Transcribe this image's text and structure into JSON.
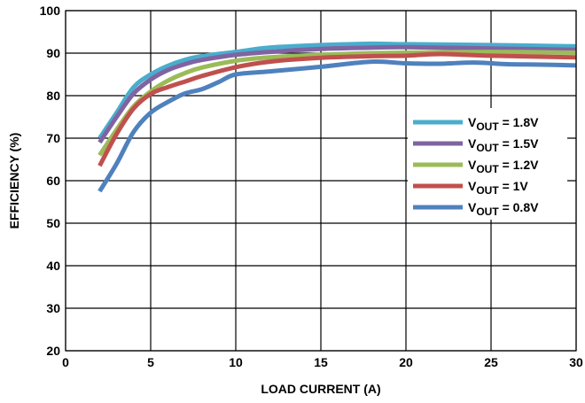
{
  "chart_data": {
    "type": "line",
    "xlabel": "LOAD CURRENT (A)",
    "ylabel": "EFFICIENCY (%)",
    "xlim": [
      0,
      30
    ],
    "ylim": [
      20,
      100
    ],
    "xticks": [
      "0",
      "5",
      "10",
      "15",
      "20",
      "25",
      "30"
    ],
    "yticks": [
      "20",
      "30",
      "40",
      "50",
      "60",
      "70",
      "80",
      "90",
      "100"
    ],
    "grid": true,
    "legend_position": "right",
    "series": [
      {
        "name": "V",
        "name_sub": "OUT",
        "name_suffix": " = 1.8V",
        "color": "#4aadcc",
        "x": [
          2,
          3,
          4,
          5,
          6,
          7,
          8,
          10,
          12,
          15,
          18,
          20,
          25,
          30
        ],
        "y": [
          70,
          76,
          82,
          85,
          87,
          88.4,
          89.3,
          90.3,
          91.3,
          91.9,
          92.2,
          92.1,
          91.9,
          91.6
        ]
      },
      {
        "name": "V",
        "name_sub": "OUT",
        "name_suffix": " = 1.5V",
        "color": "#8064a2",
        "x": [
          2,
          3,
          4,
          5,
          6,
          7,
          8,
          10,
          12,
          15,
          18,
          20,
          25,
          30
        ],
        "y": [
          69,
          75,
          80.5,
          83.8,
          86,
          87.4,
          88.4,
          89.6,
          90.3,
          91,
          91.3,
          91.4,
          91.1,
          90.8
        ]
      },
      {
        "name": "V",
        "name_sub": "OUT",
        "name_suffix": " = 1.2V",
        "color": "#9bbb59",
        "x": [
          2,
          3,
          4,
          5,
          6,
          7,
          8,
          10,
          12,
          15,
          18,
          20,
          25,
          30
        ],
        "y": [
          66,
          72,
          77.5,
          81,
          83.5,
          85.3,
          86.6,
          88.2,
          89,
          89.6,
          90,
          90.1,
          90.3,
          90.1
        ]
      },
      {
        "name": "V",
        "name_sub": "OUT",
        "name_suffix": " = 1V",
        "color": "#c0504d",
        "x": [
          2,
          3,
          4,
          5,
          6,
          7,
          8,
          10,
          12,
          15,
          18,
          20,
          22,
          25,
          30
        ],
        "y": [
          63.5,
          71,
          77,
          80.4,
          82,
          83.3,
          84.6,
          86.7,
          88,
          88.9,
          89.3,
          89.4,
          89.8,
          89.4,
          89
        ]
      },
      {
        "name": "V",
        "name_sub": "OUT",
        "name_suffix": " = 0.8V",
        "color": "#4f81bd",
        "x": [
          2,
          3,
          4,
          5,
          6,
          7,
          8,
          9,
          10,
          12,
          15,
          18,
          20,
          22,
          24,
          26,
          28,
          30
        ],
        "y": [
          57.5,
          64,
          71.5,
          76,
          78.5,
          80.5,
          81.5,
          83.2,
          85,
          85.7,
          86.8,
          88,
          87.6,
          87.5,
          87.8,
          87.4,
          87.3,
          87.1
        ]
      }
    ]
  }
}
